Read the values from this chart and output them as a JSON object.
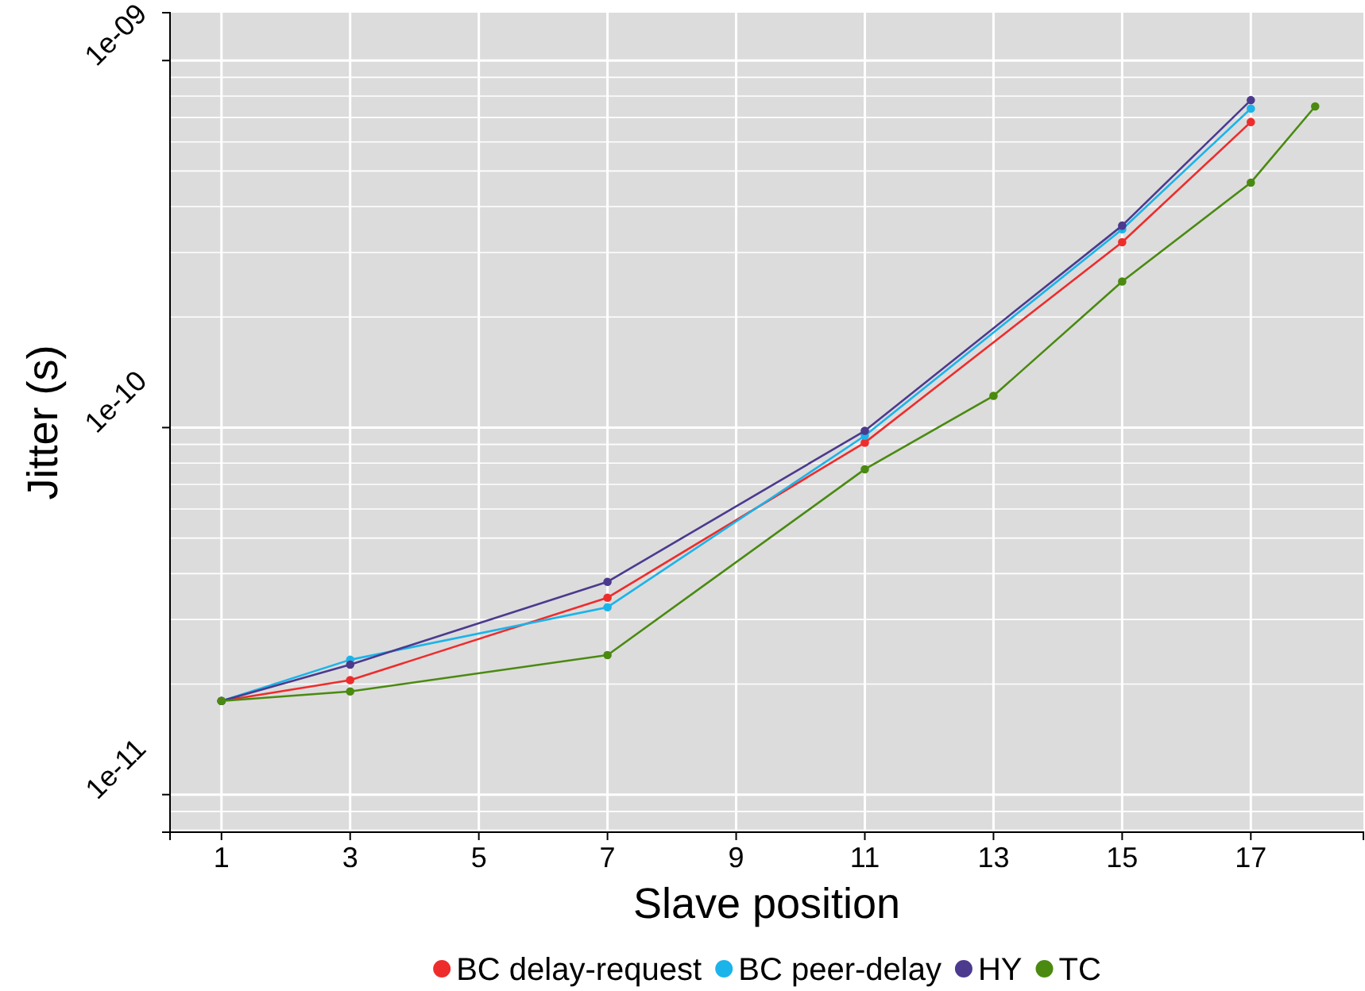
{
  "chart_data": {
    "type": "line",
    "xlabel": "Slave position",
    "ylabel": "Jitter (s)",
    "log": "y",
    "grid": true,
    "legend": "bottom",
    "marker": "circle",
    "line_style": "solid",
    "xlim": [
      0.2,
      18.75
    ],
    "xticks": [
      1,
      3,
      5,
      7,
      9,
      11,
      13,
      15,
      17
    ],
    "ylim": [
      7.9e-12,
      1.35e-09
    ],
    "yticks": [
      {
        "value": 1e-11,
        "label": "1e-11"
      },
      {
        "value": 1e-10,
        "label": "1e-10"
      },
      {
        "value": 1e-09,
        "label": "1e-09"
      }
    ],
    "series": [
      {
        "name": "BC delay-request",
        "color": "#ee2c2c",
        "x": [
          1,
          3,
          7,
          11,
          15,
          17
        ],
        "values": [
          1.8e-11,
          2.05e-11,
          3.44e-11,
          9.1e-11,
          3.2e-10,
          6.8e-10
        ]
      },
      {
        "name": "BC peer-delay",
        "color": "#1bb4ea",
        "x": [
          1,
          3,
          7,
          11,
          15,
          17
        ],
        "values": [
          1.8e-11,
          2.33e-11,
          3.24e-11,
          9.5e-11,
          3.47e-10,
          7.4e-10
        ]
      },
      {
        "name": "HY",
        "color": "#4b3a8e",
        "x": [
          1,
          3,
          7,
          11,
          15,
          17
        ],
        "values": [
          1.8e-11,
          2.26e-11,
          3.8e-11,
          9.8e-11,
          3.55e-10,
          7.8e-10
        ]
      },
      {
        "name": "TC",
        "color": "#4a8a10",
        "x": [
          1,
          3,
          7,
          11,
          13,
          15,
          17,
          18
        ],
        "values": [
          1.8e-11,
          1.91e-11,
          2.4e-11,
          7.7e-11,
          1.22e-10,
          2.5e-10,
          4.65e-10,
          7.5e-10
        ]
      }
    ]
  }
}
